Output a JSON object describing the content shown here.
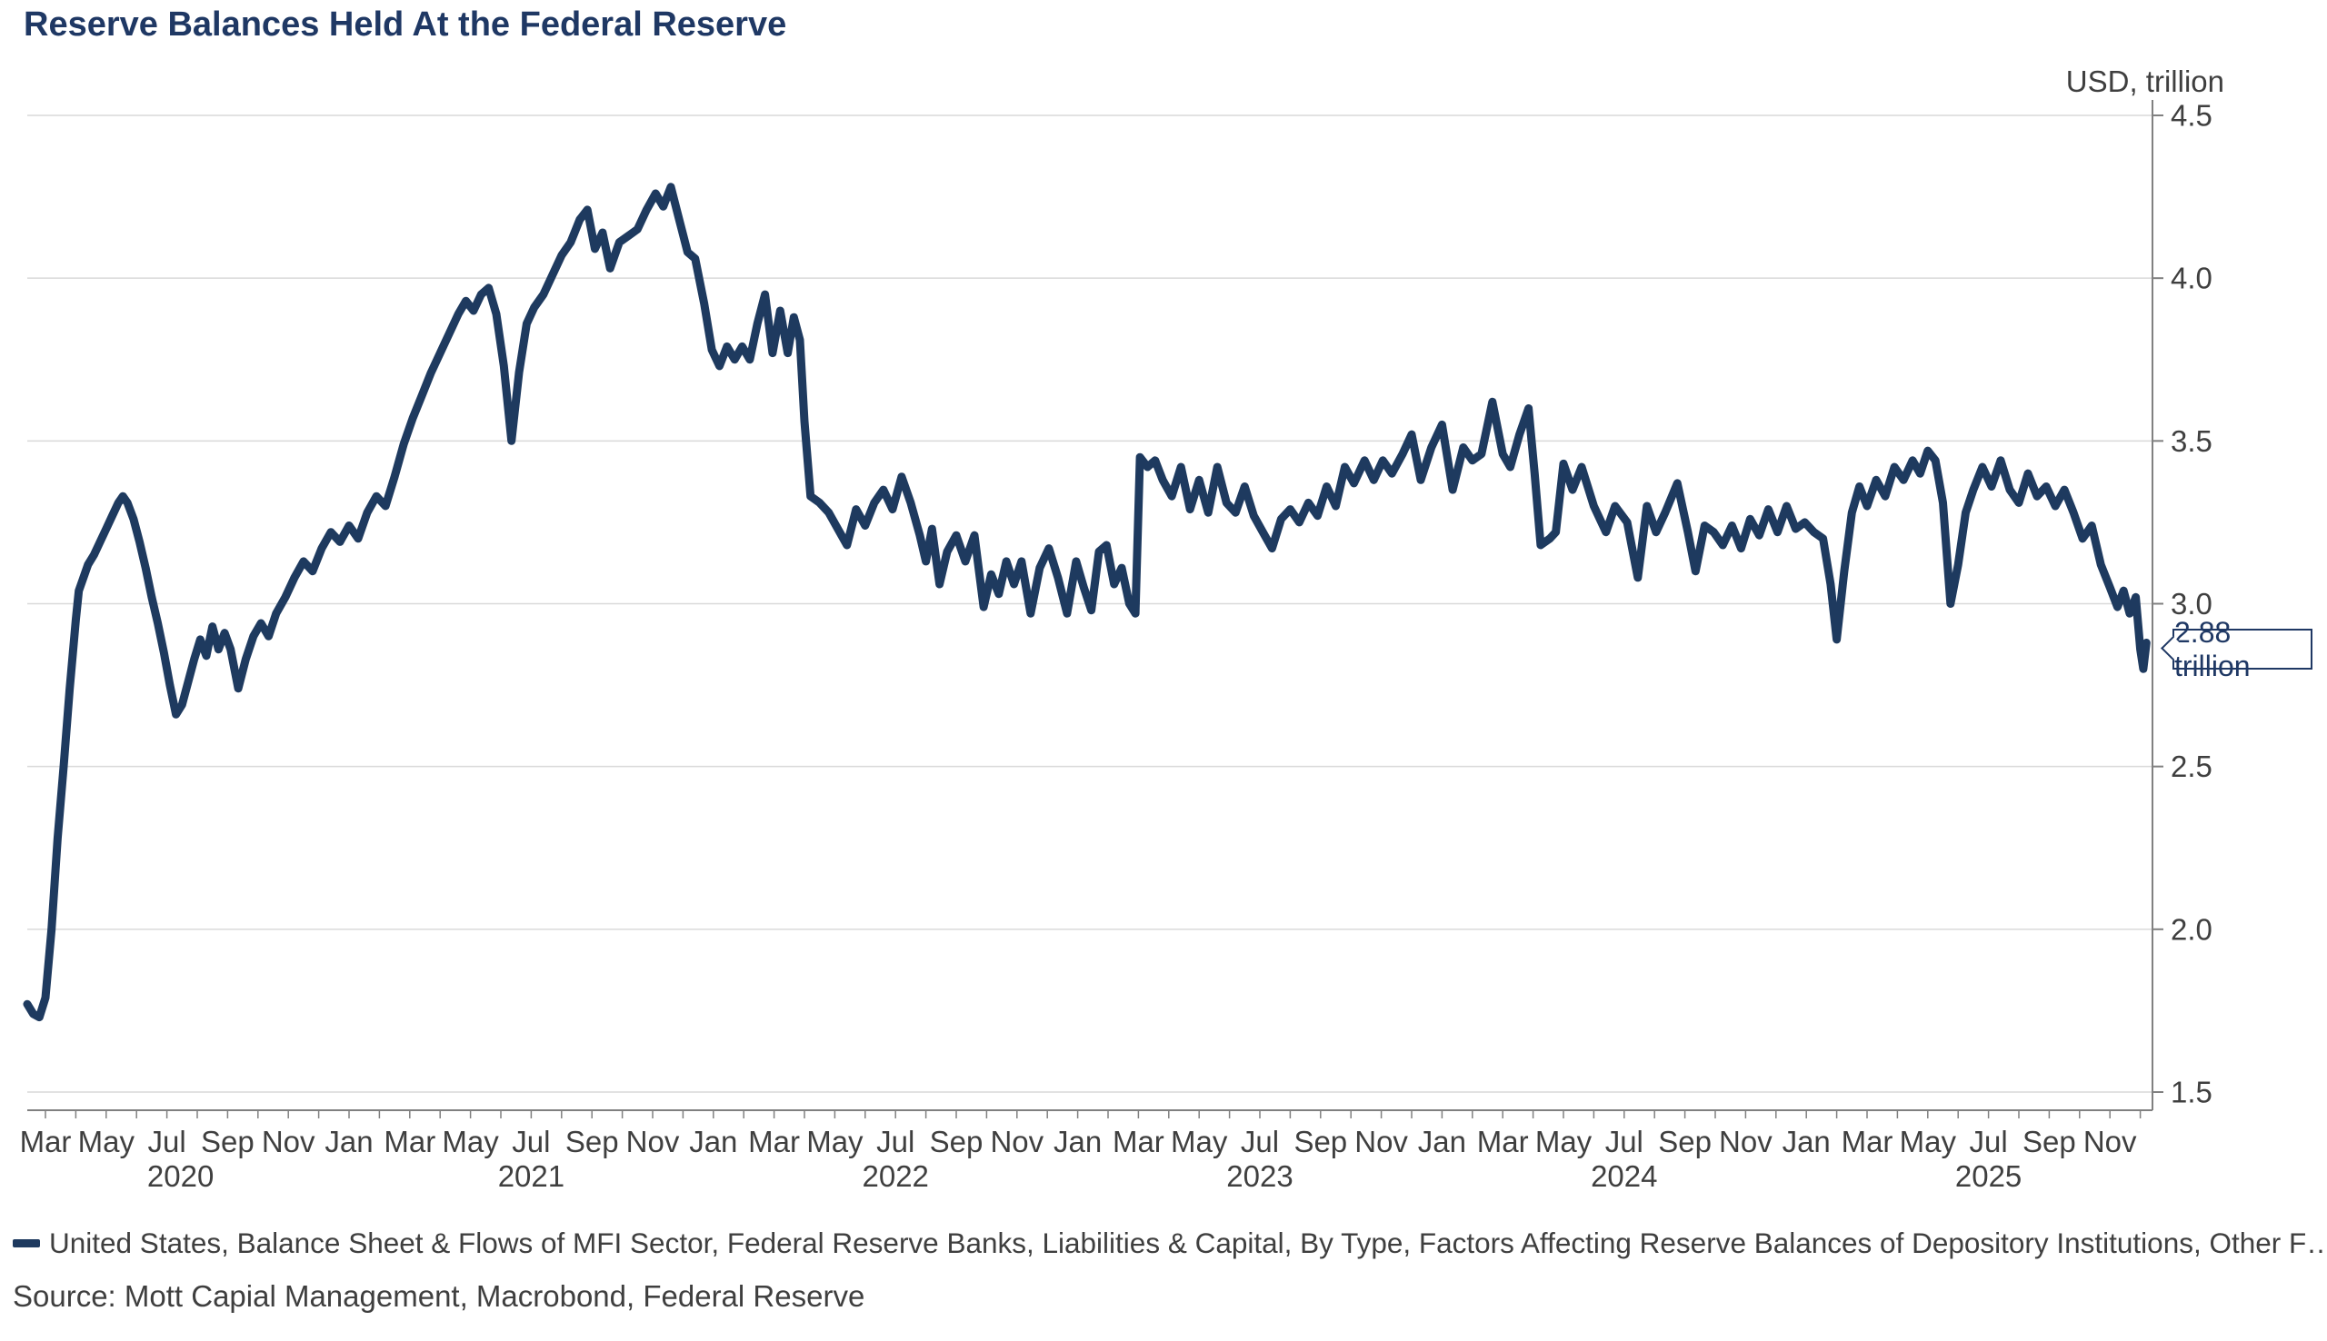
{
  "source": "Source: Mott Capial Management, Macrobond, Federal Reserve",
  "colors": {
    "line": "#1e3a5f",
    "title": "#1f3864",
    "text": "#3f3f3f",
    "grid": "#d9d9d9",
    "axis": "#808080",
    "callout_border": "#1f3864",
    "background": "#ffffff"
  },
  "chart_data": {
    "type": "line",
    "title": "Reserve Balances Held At the Federal Reserve",
    "ylabel": "USD, trillion",
    "xlabel": "",
    "ylim": [
      1.5,
      4.5
    ],
    "y_ticks": [
      4.5,
      4.0,
      3.5,
      3.0,
      2.5,
      2.0,
      1.5
    ],
    "grid": "horizontal",
    "legend_position": "bottom",
    "x_unit": "months since Jan 2020 (0 = Jan 2020); range shown Feb 2020 - mid Nov 2025",
    "x_tick_months": [
      "Mar",
      "May",
      "Jul",
      "Sep",
      "Nov",
      "Jan",
      "Mar",
      "May",
      "Jul",
      "Sep",
      "Nov",
      "Jan",
      "Mar",
      "May",
      "Jul",
      "Sep",
      "Nov",
      "Jan",
      "Mar",
      "May",
      "Jul",
      "Sep",
      "Nov",
      "Jan",
      "Mar",
      "May",
      "Jul",
      "Sep",
      "Nov",
      "Jan",
      "Mar",
      "May",
      "Jul",
      "Sep",
      "Nov"
    ],
    "years": [
      "2020",
      "2021",
      "2022",
      "2023",
      "2024",
      "2025"
    ],
    "annotations": [
      {
        "type": "callout",
        "text": "2.88 trillion",
        "value": 2.88,
        "position": "end-of-series"
      }
    ],
    "series": [
      {
        "name": "United States, Balance Sheet & Flows of MFI Sector, Federal Reserve Banks, Liabilities & Capital, By Type, Factors Affecting Reserve Balances of Depository Institutions, Other F…",
        "color": "#1e3a5f",
        "points": [
          [
            1.4,
            1.77
          ],
          [
            1.6,
            1.74
          ],
          [
            1.8,
            1.73
          ],
          [
            2.0,
            1.79
          ],
          [
            2.2,
            2.0
          ],
          [
            2.4,
            2.28
          ],
          [
            2.6,
            2.5
          ],
          [
            2.8,
            2.74
          ],
          [
            3.0,
            2.95
          ],
          [
            3.1,
            3.04
          ],
          [
            3.25,
            3.08
          ],
          [
            3.4,
            3.12
          ],
          [
            3.6,
            3.15
          ],
          [
            3.8,
            3.19
          ],
          [
            4.0,
            3.23
          ],
          [
            4.2,
            3.27
          ],
          [
            4.4,
            3.31
          ],
          [
            4.55,
            3.33
          ],
          [
            4.7,
            3.31
          ],
          [
            4.9,
            3.26
          ],
          [
            5.1,
            3.19
          ],
          [
            5.3,
            3.11
          ],
          [
            5.5,
            3.02
          ],
          [
            5.7,
            2.94
          ],
          [
            5.9,
            2.85
          ],
          [
            6.1,
            2.75
          ],
          [
            6.3,
            2.66
          ],
          [
            6.5,
            2.69
          ],
          [
            6.7,
            2.76
          ],
          [
            6.9,
            2.83
          ],
          [
            7.1,
            2.89
          ],
          [
            7.3,
            2.84
          ],
          [
            7.5,
            2.93
          ],
          [
            7.7,
            2.86
          ],
          [
            7.9,
            2.91
          ],
          [
            8.1,
            2.86
          ],
          [
            8.35,
            2.74
          ],
          [
            8.6,
            2.83
          ],
          [
            8.85,
            2.9
          ],
          [
            9.1,
            2.94
          ],
          [
            9.35,
            2.9
          ],
          [
            9.6,
            2.97
          ],
          [
            9.9,
            3.02
          ],
          [
            10.2,
            3.08
          ],
          [
            10.5,
            3.13
          ],
          [
            10.8,
            3.1
          ],
          [
            11.1,
            3.17
          ],
          [
            11.4,
            3.22
          ],
          [
            11.7,
            3.19
          ],
          [
            12.0,
            3.24
          ],
          [
            12.3,
            3.2
          ],
          [
            12.6,
            3.28
          ],
          [
            12.9,
            3.33
          ],
          [
            13.2,
            3.3
          ],
          [
            13.5,
            3.39
          ],
          [
            13.8,
            3.49
          ],
          [
            14.1,
            3.57
          ],
          [
            14.4,
            3.64
          ],
          [
            14.7,
            3.71
          ],
          [
            15.0,
            3.77
          ],
          [
            15.3,
            3.83
          ],
          [
            15.6,
            3.89
          ],
          [
            15.85,
            3.93
          ],
          [
            16.1,
            3.9
          ],
          [
            16.35,
            3.95
          ],
          [
            16.6,
            3.97
          ],
          [
            16.85,
            3.89
          ],
          [
            17.1,
            3.73
          ],
          [
            17.35,
            3.5
          ],
          [
            17.6,
            3.71
          ],
          [
            17.85,
            3.86
          ],
          [
            18.1,
            3.91
          ],
          [
            18.4,
            3.95
          ],
          [
            18.7,
            4.01
          ],
          [
            19.0,
            4.07
          ],
          [
            19.3,
            4.11
          ],
          [
            19.6,
            4.18
          ],
          [
            19.85,
            4.21
          ],
          [
            20.1,
            4.09
          ],
          [
            20.35,
            4.14
          ],
          [
            20.6,
            4.03
          ],
          [
            20.9,
            4.11
          ],
          [
            21.2,
            4.13
          ],
          [
            21.5,
            4.15
          ],
          [
            21.8,
            4.21
          ],
          [
            22.1,
            4.26
          ],
          [
            22.35,
            4.22
          ],
          [
            22.6,
            4.28
          ],
          [
            22.9,
            4.17
          ],
          [
            23.15,
            4.08
          ],
          [
            23.4,
            4.06
          ],
          [
            23.7,
            3.92
          ],
          [
            23.95,
            3.78
          ],
          [
            24.2,
            3.73
          ],
          [
            24.45,
            3.79
          ],
          [
            24.7,
            3.75
          ],
          [
            24.95,
            3.79
          ],
          [
            25.2,
            3.75
          ],
          [
            25.45,
            3.86
          ],
          [
            25.7,
            3.95
          ],
          [
            25.95,
            3.77
          ],
          [
            26.2,
            3.9
          ],
          [
            26.45,
            3.77
          ],
          [
            26.65,
            3.88
          ],
          [
            26.85,
            3.81
          ],
          [
            27.0,
            3.56
          ],
          [
            27.2,
            3.33
          ],
          [
            27.5,
            3.31
          ],
          [
            27.8,
            3.28
          ],
          [
            28.1,
            3.23
          ],
          [
            28.4,
            3.18
          ],
          [
            28.7,
            3.29
          ],
          [
            29.0,
            3.24
          ],
          [
            29.3,
            3.31
          ],
          [
            29.6,
            3.35
          ],
          [
            29.9,
            3.29
          ],
          [
            30.2,
            3.39
          ],
          [
            30.5,
            3.31
          ],
          [
            30.8,
            3.21
          ],
          [
            31.0,
            3.13
          ],
          [
            31.2,
            3.23
          ],
          [
            31.45,
            3.06
          ],
          [
            31.7,
            3.16
          ],
          [
            32.0,
            3.21
          ],
          [
            32.3,
            3.13
          ],
          [
            32.6,
            3.21
          ],
          [
            32.9,
            2.99
          ],
          [
            33.15,
            3.09
          ],
          [
            33.4,
            3.03
          ],
          [
            33.65,
            3.13
          ],
          [
            33.9,
            3.06
          ],
          [
            34.15,
            3.13
          ],
          [
            34.45,
            2.97
          ],
          [
            34.75,
            3.11
          ],
          [
            35.05,
            3.17
          ],
          [
            35.35,
            3.08
          ],
          [
            35.65,
            2.97
          ],
          [
            35.95,
            3.13
          ],
          [
            36.2,
            3.05
          ],
          [
            36.45,
            2.98
          ],
          [
            36.7,
            3.16
          ],
          [
            36.95,
            3.18
          ],
          [
            37.2,
            3.06
          ],
          [
            37.45,
            3.11
          ],
          [
            37.7,
            3.0
          ],
          [
            37.9,
            2.97
          ],
          [
            38.05,
            3.45
          ],
          [
            38.3,
            3.42
          ],
          [
            38.55,
            3.44
          ],
          [
            38.8,
            3.38
          ],
          [
            39.1,
            3.33
          ],
          [
            39.4,
            3.42
          ],
          [
            39.7,
            3.29
          ],
          [
            40.0,
            3.38
          ],
          [
            40.3,
            3.28
          ],
          [
            40.6,
            3.42
          ],
          [
            40.9,
            3.31
          ],
          [
            41.2,
            3.28
          ],
          [
            41.5,
            3.36
          ],
          [
            41.8,
            3.27
          ],
          [
            42.1,
            3.22
          ],
          [
            42.4,
            3.17
          ],
          [
            42.7,
            3.26
          ],
          [
            43.0,
            3.29
          ],
          [
            43.3,
            3.25
          ],
          [
            43.6,
            3.31
          ],
          [
            43.9,
            3.27
          ],
          [
            44.2,
            3.36
          ],
          [
            44.5,
            3.3
          ],
          [
            44.8,
            3.42
          ],
          [
            45.1,
            3.37
          ],
          [
            45.45,
            3.44
          ],
          [
            45.75,
            3.38
          ],
          [
            46.05,
            3.44
          ],
          [
            46.35,
            3.4
          ],
          [
            46.7,
            3.46
          ],
          [
            47.0,
            3.52
          ],
          [
            47.3,
            3.38
          ],
          [
            47.65,
            3.48
          ],
          [
            48.0,
            3.55
          ],
          [
            48.35,
            3.35
          ],
          [
            48.7,
            3.48
          ],
          [
            49.0,
            3.44
          ],
          [
            49.3,
            3.46
          ],
          [
            49.66,
            3.62
          ],
          [
            50.0,
            3.46
          ],
          [
            50.25,
            3.42
          ],
          [
            50.55,
            3.52
          ],
          [
            50.85,
            3.6
          ],
          [
            51.05,
            3.4
          ],
          [
            51.25,
            3.18
          ],
          [
            51.55,
            3.2
          ],
          [
            51.75,
            3.22
          ],
          [
            52.0,
            3.43
          ],
          [
            52.3,
            3.35
          ],
          [
            52.6,
            3.42
          ],
          [
            53.0,
            3.3
          ],
          [
            53.4,
            3.22
          ],
          [
            53.7,
            3.3
          ],
          [
            54.1,
            3.25
          ],
          [
            54.45,
            3.08
          ],
          [
            54.75,
            3.3
          ],
          [
            55.05,
            3.22
          ],
          [
            55.35,
            3.28
          ],
          [
            55.75,
            3.37
          ],
          [
            56.1,
            3.22
          ],
          [
            56.35,
            3.1
          ],
          [
            56.65,
            3.24
          ],
          [
            56.95,
            3.22
          ],
          [
            57.25,
            3.18
          ],
          [
            57.55,
            3.24
          ],
          [
            57.85,
            3.17
          ],
          [
            58.15,
            3.26
          ],
          [
            58.45,
            3.21
          ],
          [
            58.75,
            3.29
          ],
          [
            59.05,
            3.22
          ],
          [
            59.35,
            3.3
          ],
          [
            59.65,
            3.23
          ],
          [
            59.95,
            3.25
          ],
          [
            60.25,
            3.22
          ],
          [
            60.55,
            3.2
          ],
          [
            60.8,
            3.06
          ],
          [
            61.0,
            2.89
          ],
          [
            61.25,
            3.1
          ],
          [
            61.5,
            3.28
          ],
          [
            61.75,
            3.36
          ],
          [
            62.0,
            3.3
          ],
          [
            62.3,
            3.38
          ],
          [
            62.6,
            3.33
          ],
          [
            62.9,
            3.42
          ],
          [
            63.2,
            3.38
          ],
          [
            63.5,
            3.44
          ],
          [
            63.75,
            3.4
          ],
          [
            64.0,
            3.47
          ],
          [
            64.25,
            3.44
          ],
          [
            64.5,
            3.31
          ],
          [
            64.75,
            3.0
          ],
          [
            65.0,
            3.12
          ],
          [
            65.25,
            3.28
          ],
          [
            65.5,
            3.35
          ],
          [
            65.8,
            3.42
          ],
          [
            66.1,
            3.36
          ],
          [
            66.4,
            3.44
          ],
          [
            66.7,
            3.35
          ],
          [
            67.0,
            3.31
          ],
          [
            67.3,
            3.4
          ],
          [
            67.6,
            3.33
          ],
          [
            67.9,
            3.36
          ],
          [
            68.2,
            3.3
          ],
          [
            68.5,
            3.35
          ],
          [
            68.8,
            3.28
          ],
          [
            69.1,
            3.2
          ],
          [
            69.4,
            3.24
          ],
          [
            69.7,
            3.12
          ],
          [
            70.0,
            3.05
          ],
          [
            70.25,
            2.99
          ],
          [
            70.45,
            3.04
          ],
          [
            70.65,
            2.97
          ],
          [
            70.85,
            3.02
          ],
          [
            71.0,
            2.86
          ],
          [
            71.1,
            2.8
          ],
          [
            71.2,
            2.88
          ]
        ]
      }
    ]
  }
}
